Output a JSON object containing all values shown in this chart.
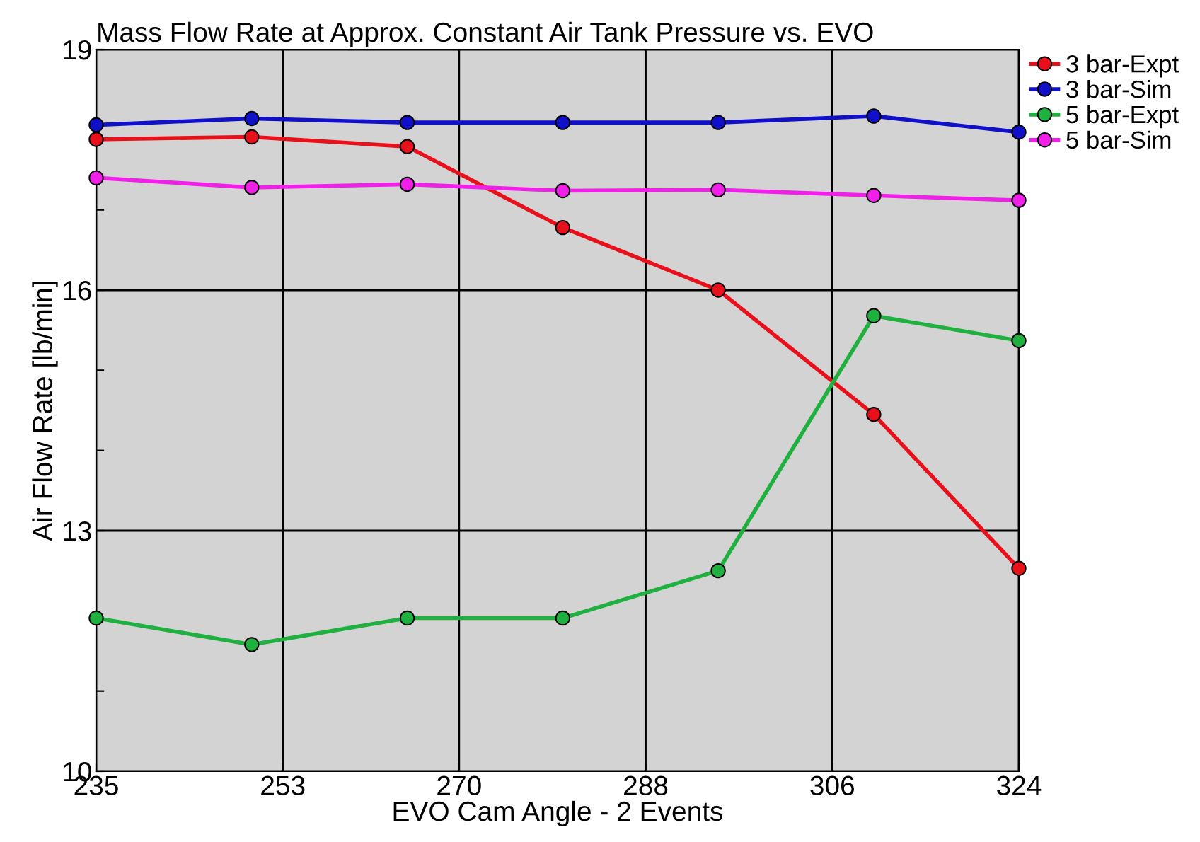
{
  "chart_data": {
    "type": "line",
    "title": "Mass Flow Rate at Approx. Constant Air Tank Pressure vs. EVO",
    "xlabel": "EVO Cam Angle - 2 Events",
    "ylabel": "Air Flow Rate [lb/min]",
    "x": [
      235,
      250,
      265,
      280,
      295,
      310,
      324
    ],
    "series": [
      {
        "name": "3 bar-Expt",
        "color": "#e8101a",
        "values": [
          17.88,
          17.91,
          17.79,
          16.78,
          16.0,
          14.45,
          12.53
        ]
      },
      {
        "name": "3 bar-Sim",
        "color": "#1010c8",
        "values": [
          18.06,
          18.14,
          18.09,
          18.09,
          18.09,
          18.17,
          17.97
        ]
      },
      {
        "name": "5 bar-Expt",
        "color": "#20b040",
        "values": [
          11.91,
          11.58,
          11.91,
          11.91,
          12.5,
          15.68,
          15.37
        ]
      },
      {
        "name": "5 bar-Sim",
        "color": "#f020e8",
        "values": [
          17.4,
          17.28,
          17.32,
          17.24,
          17.25,
          17.18,
          17.12
        ]
      }
    ],
    "xlim": [
      235,
      324
    ],
    "xticks": [
      235,
      253,
      270,
      288,
      306,
      324
    ],
    "ylim": [
      10,
      19
    ],
    "yticks": [
      10,
      {
        "value": 11,
        "label": null
      },
      13,
      {
        "value": 14,
        "label": null
      },
      {
        "value": 15,
        "label": null
      },
      16,
      {
        "value": 17,
        "label": null
      },
      19
    ],
    "grid": true,
    "legend": "top right",
    "marker": "circle",
    "line_style": "solid"
  }
}
